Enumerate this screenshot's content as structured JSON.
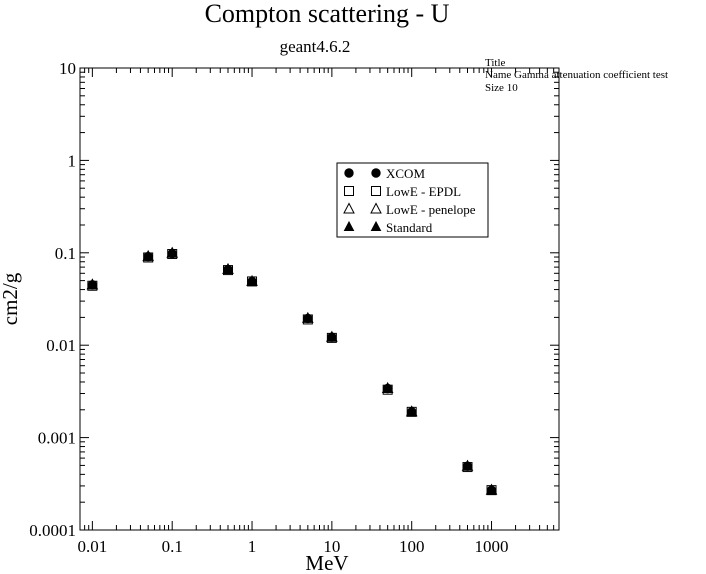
{
  "chart_data": {
    "type": "scatter",
    "title": "Compton scattering - U",
    "subtitle": "geant4.6.2",
    "xlabel": "MeV",
    "ylabel": "cm2/g",
    "xscale": "log",
    "yscale": "log",
    "xlim": [
      0.007,
      7000
    ],
    "ylim": [
      0.0001,
      10
    ],
    "x_ticks": [
      0.01,
      0.1,
      1,
      10,
      100,
      1000
    ],
    "x_tick_labels": [
      "0.01",
      "0.1",
      "1",
      "10",
      "100",
      "1000"
    ],
    "y_ticks": [
      0.0001,
      0.001,
      0.01,
      0.1,
      1,
      10
    ],
    "y_tick_labels": [
      "0.0001",
      "0.001",
      "0.01",
      "0.1",
      "1",
      "10"
    ],
    "grid": false,
    "legend_position": "top-right inside plot",
    "series": [
      {
        "name": "XCOM",
        "marker": "filled-circle",
        "x": [
          0.01,
          0.05,
          0.1,
          0.5,
          1,
          5,
          10,
          50,
          100,
          500,
          1000
        ],
        "y": [
          0.045,
          0.091,
          0.098,
          0.066,
          0.049,
          0.0195,
          0.0122,
          0.0034,
          0.0019,
          0.00049,
          0.00027
        ]
      },
      {
        "name": "LowE - EPDL",
        "marker": "open-square",
        "x": [
          0.01,
          0.05,
          0.1,
          0.5,
          1,
          5,
          10,
          50,
          100,
          500,
          1000
        ],
        "y": [
          0.044,
          0.089,
          0.097,
          0.065,
          0.049,
          0.019,
          0.012,
          0.0033,
          0.0019,
          0.00048,
          0.00027
        ]
      },
      {
        "name": "LowE - penelope",
        "marker": "open-triangle",
        "x": [
          0.01,
          0.05,
          0.1,
          0.5,
          1,
          5,
          10,
          50,
          100,
          500,
          1000
        ],
        "y": [
          0.045,
          0.091,
          0.099,
          0.066,
          0.049,
          0.0195,
          0.0122,
          0.0034,
          0.0019,
          0.00049,
          0.00027
        ]
      },
      {
        "name": "Standard",
        "marker": "filled-triangle",
        "x": [
          0.01,
          0.05,
          0.1,
          0.5,
          1,
          5,
          10,
          50,
          100,
          500,
          1000
        ],
        "y": [
          0.045,
          0.092,
          0.099,
          0.066,
          0.049,
          0.0195,
          0.0122,
          0.0034,
          0.0019,
          0.00049,
          0.00027
        ]
      }
    ],
    "annotation": {
      "title_label": "Title",
      "name_line": "Name  Gamma attenuation coefficient test",
      "size_line": "Size  10"
    }
  }
}
